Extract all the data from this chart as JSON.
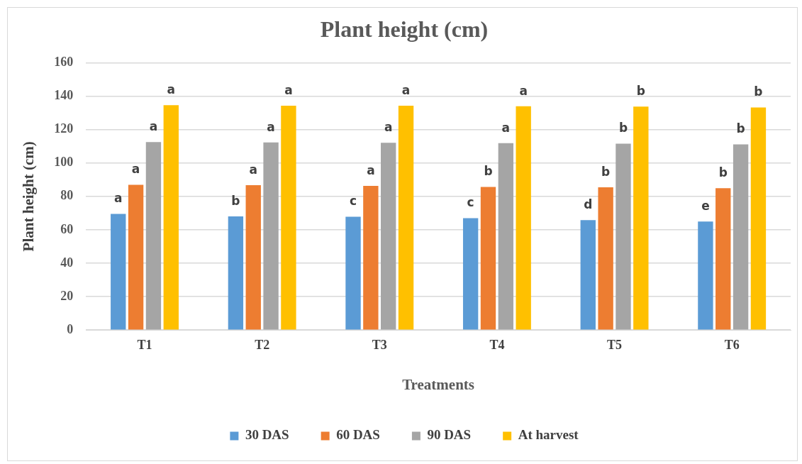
{
  "chart_data": {
    "type": "bar",
    "title": "Plant height (cm)",
    "xlabel": "Treatments",
    "ylabel": "Plant height (cm)",
    "categories": [
      "T1",
      "T2",
      "T3",
      "T4",
      "T5",
      "T6"
    ],
    "series": [
      {
        "name": "30 DAS",
        "color": "#5b9bd5",
        "values": [
          69.5,
          68.0,
          67.8,
          67.0,
          65.8,
          64.9
        ],
        "value_labels": [
          "a",
          "b",
          "c",
          "c",
          "d",
          "e"
        ]
      },
      {
        "name": "60 DAS",
        "color": "#ed7d31",
        "values": [
          86.9,
          86.7,
          86.3,
          85.7,
          85.4,
          84.9
        ],
        "value_labels": [
          "a",
          "a",
          "a",
          "b",
          "b",
          "b"
        ]
      },
      {
        "name": "90 DAS",
        "color": "#a5a5a5",
        "values": [
          112.5,
          112.3,
          112.1,
          111.9,
          111.6,
          111.1
        ],
        "value_labels": [
          "a",
          "a",
          "a",
          "a",
          "b",
          "b"
        ]
      },
      {
        "name": "At harvest",
        "color": "#ffc000",
        "values": [
          134.6,
          134.3,
          134.3,
          134.0,
          133.7,
          133.2
        ],
        "value_labels": [
          "a",
          "a",
          "a",
          "a",
          "b",
          "b"
        ]
      }
    ],
    "ylim": [
      0,
      160
    ],
    "yticks": [
      0,
      20,
      40,
      60,
      80,
      100,
      120,
      140,
      160
    ],
    "grid": "y",
    "legend": "bottom"
  }
}
